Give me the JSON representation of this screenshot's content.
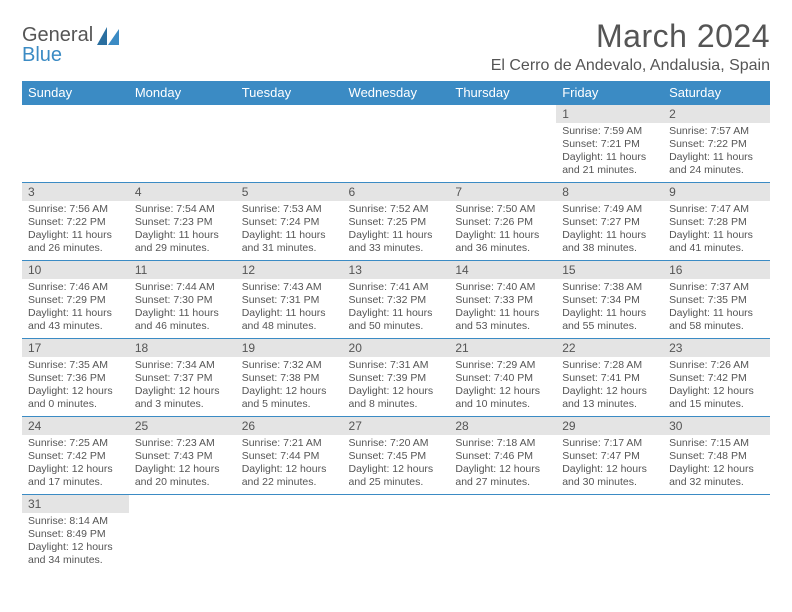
{
  "logo": {
    "part1": "General",
    "part2": "Blue"
  },
  "title": "March 2024",
  "location": "El Cerro de Andevalo, Andalusia, Spain",
  "weekdays": [
    "Sunday",
    "Monday",
    "Tuesday",
    "Wednesday",
    "Thursday",
    "Friday",
    "Saturday"
  ],
  "colors": {
    "header_bg": "#3b8bc4",
    "daynum_bg": "#e4e4e4",
    "border": "#3b8bc4",
    "text": "#555555"
  },
  "grid": [
    [
      null,
      null,
      null,
      null,
      null,
      {
        "n": "1",
        "sr": "7:59 AM",
        "ss": "7:21 PM",
        "dl": "11 hours and 21 minutes."
      },
      {
        "n": "2",
        "sr": "7:57 AM",
        "ss": "7:22 PM",
        "dl": "11 hours and 24 minutes."
      }
    ],
    [
      {
        "n": "3",
        "sr": "7:56 AM",
        "ss": "7:22 PM",
        "dl": "11 hours and 26 minutes."
      },
      {
        "n": "4",
        "sr": "7:54 AM",
        "ss": "7:23 PM",
        "dl": "11 hours and 29 minutes."
      },
      {
        "n": "5",
        "sr": "7:53 AM",
        "ss": "7:24 PM",
        "dl": "11 hours and 31 minutes."
      },
      {
        "n": "6",
        "sr": "7:52 AM",
        "ss": "7:25 PM",
        "dl": "11 hours and 33 minutes."
      },
      {
        "n": "7",
        "sr": "7:50 AM",
        "ss": "7:26 PM",
        "dl": "11 hours and 36 minutes."
      },
      {
        "n": "8",
        "sr": "7:49 AM",
        "ss": "7:27 PM",
        "dl": "11 hours and 38 minutes."
      },
      {
        "n": "9",
        "sr": "7:47 AM",
        "ss": "7:28 PM",
        "dl": "11 hours and 41 minutes."
      }
    ],
    [
      {
        "n": "10",
        "sr": "7:46 AM",
        "ss": "7:29 PM",
        "dl": "11 hours and 43 minutes."
      },
      {
        "n": "11",
        "sr": "7:44 AM",
        "ss": "7:30 PM",
        "dl": "11 hours and 46 minutes."
      },
      {
        "n": "12",
        "sr": "7:43 AM",
        "ss": "7:31 PM",
        "dl": "11 hours and 48 minutes."
      },
      {
        "n": "13",
        "sr": "7:41 AM",
        "ss": "7:32 PM",
        "dl": "11 hours and 50 minutes."
      },
      {
        "n": "14",
        "sr": "7:40 AM",
        "ss": "7:33 PM",
        "dl": "11 hours and 53 minutes."
      },
      {
        "n": "15",
        "sr": "7:38 AM",
        "ss": "7:34 PM",
        "dl": "11 hours and 55 minutes."
      },
      {
        "n": "16",
        "sr": "7:37 AM",
        "ss": "7:35 PM",
        "dl": "11 hours and 58 minutes."
      }
    ],
    [
      {
        "n": "17",
        "sr": "7:35 AM",
        "ss": "7:36 PM",
        "dl": "12 hours and 0 minutes."
      },
      {
        "n": "18",
        "sr": "7:34 AM",
        "ss": "7:37 PM",
        "dl": "12 hours and 3 minutes."
      },
      {
        "n": "19",
        "sr": "7:32 AM",
        "ss": "7:38 PM",
        "dl": "12 hours and 5 minutes."
      },
      {
        "n": "20",
        "sr": "7:31 AM",
        "ss": "7:39 PM",
        "dl": "12 hours and 8 minutes."
      },
      {
        "n": "21",
        "sr": "7:29 AM",
        "ss": "7:40 PM",
        "dl": "12 hours and 10 minutes."
      },
      {
        "n": "22",
        "sr": "7:28 AM",
        "ss": "7:41 PM",
        "dl": "12 hours and 13 minutes."
      },
      {
        "n": "23",
        "sr": "7:26 AM",
        "ss": "7:42 PM",
        "dl": "12 hours and 15 minutes."
      }
    ],
    [
      {
        "n": "24",
        "sr": "7:25 AM",
        "ss": "7:42 PM",
        "dl": "12 hours and 17 minutes."
      },
      {
        "n": "25",
        "sr": "7:23 AM",
        "ss": "7:43 PM",
        "dl": "12 hours and 20 minutes."
      },
      {
        "n": "26",
        "sr": "7:21 AM",
        "ss": "7:44 PM",
        "dl": "12 hours and 22 minutes."
      },
      {
        "n": "27",
        "sr": "7:20 AM",
        "ss": "7:45 PM",
        "dl": "12 hours and 25 minutes."
      },
      {
        "n": "28",
        "sr": "7:18 AM",
        "ss": "7:46 PM",
        "dl": "12 hours and 27 minutes."
      },
      {
        "n": "29",
        "sr": "7:17 AM",
        "ss": "7:47 PM",
        "dl": "12 hours and 30 minutes."
      },
      {
        "n": "30",
        "sr": "7:15 AM",
        "ss": "7:48 PM",
        "dl": "12 hours and 32 minutes."
      }
    ],
    [
      {
        "n": "31",
        "sr": "8:14 AM",
        "ss": "8:49 PM",
        "dl": "12 hours and 34 minutes."
      },
      null,
      null,
      null,
      null,
      null,
      null
    ]
  ],
  "labels": {
    "sunrise": "Sunrise: ",
    "sunset": "Sunset: ",
    "daylight": "Daylight: "
  }
}
